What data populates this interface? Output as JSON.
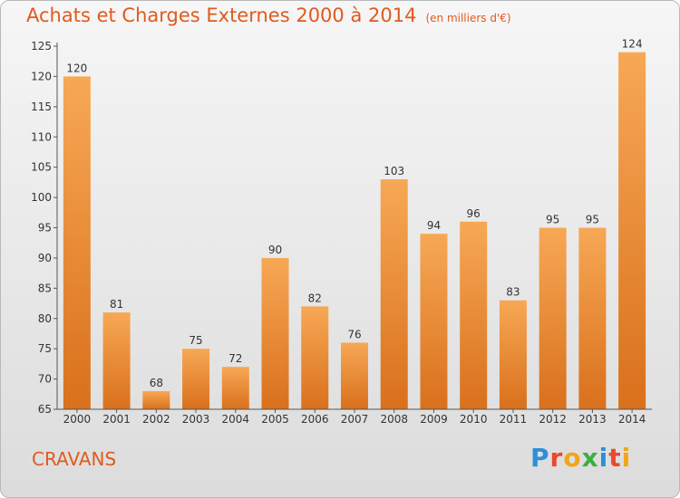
{
  "title": "Achats et Charges Externes 2000 à 2014",
  "subtitle": "(en milliers d'€)",
  "commune": "CRAVANS",
  "brand": {
    "letters": [
      "P",
      "r",
      "o",
      "x",
      "i",
      "t",
      "i"
    ],
    "colors": [
      "#2e8fd6",
      "#e84a2c",
      "#f2a516",
      "#3fae3f",
      "#2e8fd6",
      "#e84a2c",
      "#f2a516"
    ]
  },
  "colors": {
    "bar_top": "#f7a855",
    "bar_bottom": "#d9701c",
    "accent": "#e05a1e",
    "axis": "#555555"
  },
  "chart_data": {
    "type": "bar",
    "categories": [
      "2000",
      "2001",
      "2002",
      "2003",
      "2004",
      "2005",
      "2006",
      "2007",
      "2008",
      "2009",
      "2010",
      "2011",
      "2012",
      "2013",
      "2014"
    ],
    "values": [
      120,
      81,
      68,
      75,
      72,
      90,
      82,
      76,
      103,
      94,
      96,
      83,
      95,
      95,
      124
    ],
    "ylim": [
      65,
      125
    ],
    "yticks": [
      65,
      70,
      75,
      80,
      85,
      90,
      95,
      100,
      105,
      110,
      115,
      120,
      125
    ],
    "xlabel": "",
    "ylabel": "",
    "grid": false
  }
}
